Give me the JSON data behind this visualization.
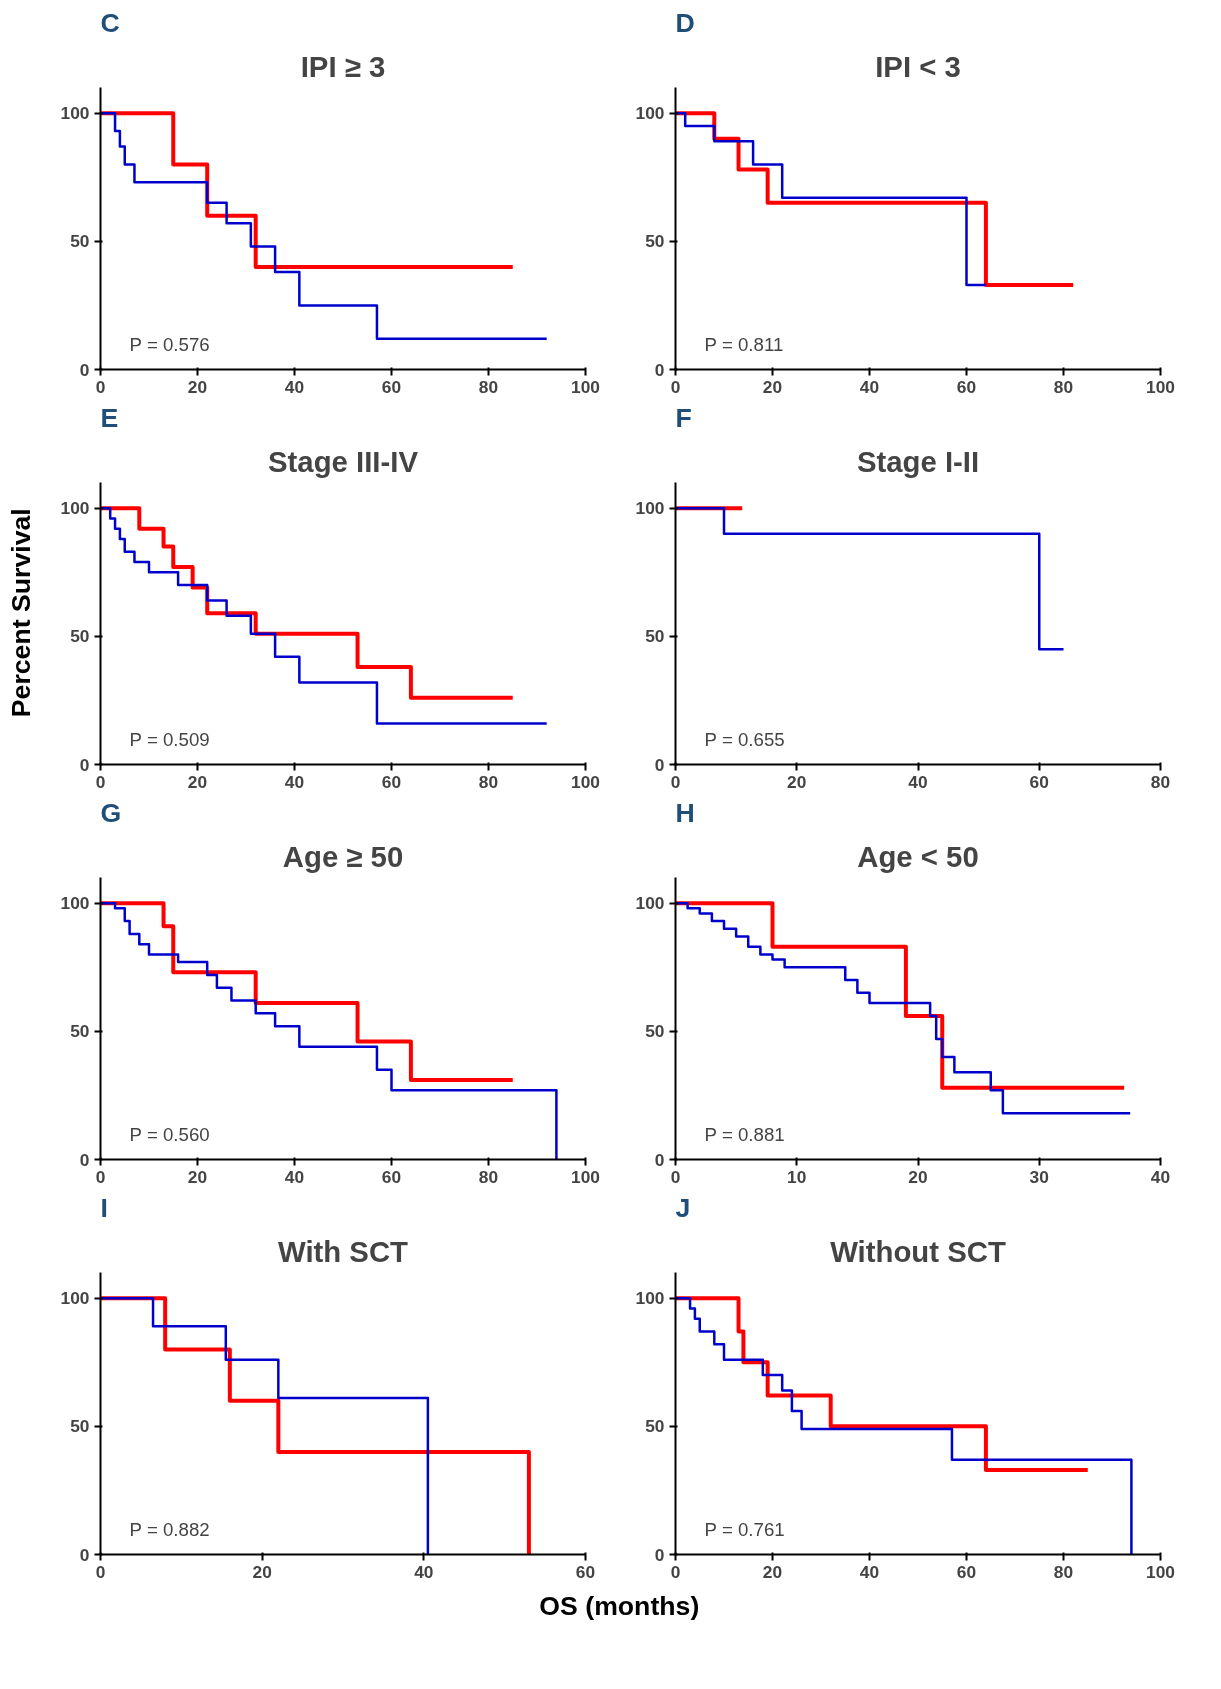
{
  "chart_data": [
    {
      "type": "step",
      "title": "IPI ≥ 3",
      "annotations": [
        "C",
        "P = 0.576"
      ],
      "xlim": [
        0,
        100
      ],
      "xticks": [
        0,
        20,
        40,
        60,
        80,
        100
      ],
      "ylim": [
        0,
        110
      ],
      "yticks": [
        0,
        50,
        100
      ],
      "grid": false,
      "series": [
        {
          "color": "#ff0000",
          "x": [
            0,
            15,
            22,
            32,
            85
          ],
          "values": [
            100,
            80,
            60,
            40,
            40
          ]
        },
        {
          "color": "#0000cc",
          "x": [
            0,
            3,
            4,
            5,
            7,
            22,
            26,
            31,
            36,
            41,
            57,
            92
          ],
          "values": [
            100,
            93,
            87,
            80,
            73,
            65,
            57,
            48,
            38,
            25,
            12,
            12
          ]
        }
      ]
    },
    {
      "type": "step",
      "title": "IPI < 3",
      "annotations": [
        "D",
        "P = 0.811"
      ],
      "xlim": [
        0,
        100
      ],
      "xticks": [
        0,
        20,
        40,
        60,
        80,
        100
      ],
      "ylim": [
        0,
        110
      ],
      "yticks": [
        0,
        50,
        100
      ],
      "grid": false,
      "series": [
        {
          "color": "#ff0000",
          "x": [
            0,
            8,
            13,
            19,
            64,
            82
          ],
          "values": [
            100,
            90,
            78,
            65,
            33,
            33
          ]
        },
        {
          "color": "#0000cc",
          "x": [
            0,
            2,
            8,
            16,
            22,
            60,
            64
          ],
          "values": [
            100,
            95,
            89,
            80,
            67,
            33,
            33
          ]
        }
      ]
    },
    {
      "type": "step",
      "title": "Stage III-IV",
      "ylabel": "Percent Survival",
      "annotations": [
        "E",
        "P = 0.509"
      ],
      "xlim": [
        0,
        100
      ],
      "xticks": [
        0,
        20,
        40,
        60,
        80,
        100
      ],
      "ylim": [
        0,
        110
      ],
      "yticks": [
        0,
        50,
        100
      ],
      "grid": false,
      "series": [
        {
          "color": "#ff0000",
          "x": [
            0,
            8,
            13,
            15,
            19,
            22,
            32,
            53,
            64,
            85
          ],
          "values": [
            100,
            92,
            85,
            77,
            69,
            59,
            51,
            38,
            26,
            26
          ]
        },
        {
          "color": "#0000cc",
          "x": [
            0,
            2,
            3,
            4,
            5,
            7,
            10,
            16,
            22,
            26,
            31,
            36,
            41,
            57,
            92
          ],
          "values": [
            100,
            96,
            92,
            88,
            83,
            79,
            75,
            70,
            64,
            58,
            51,
            42,
            32,
            16,
            16
          ]
        }
      ]
    },
    {
      "type": "step",
      "title": "Stage I-II",
      "annotations": [
        "F",
        "P = 0.655"
      ],
      "xlim": [
        0,
        80
      ],
      "xticks": [
        0,
        20,
        40,
        60,
        80
      ],
      "ylim": [
        0,
        110
      ],
      "yticks": [
        0,
        50,
        100
      ],
      "grid": false,
      "series": [
        {
          "color": "#ff0000",
          "x": [
            0,
            11
          ],
          "values": [
            100,
            100
          ]
        },
        {
          "color": "#0000cc",
          "x": [
            0,
            8,
            60,
            64
          ],
          "values": [
            100,
            90,
            45,
            45
          ]
        }
      ]
    },
    {
      "type": "step",
      "title": "Age ≥ 50",
      "annotations": [
        "G",
        "P = 0.560"
      ],
      "xlim": [
        0,
        100
      ],
      "xticks": [
        0,
        20,
        40,
        60,
        80,
        100
      ],
      "ylim": [
        0,
        110
      ],
      "yticks": [
        0,
        50,
        100
      ],
      "grid": false,
      "series": [
        {
          "color": "#ff0000",
          "x": [
            0,
            13,
            15,
            32,
            53,
            64,
            85
          ],
          "values": [
            100,
            91,
            73,
            61,
            46,
            31,
            31
          ]
        },
        {
          "color": "#0000cc",
          "x": [
            0,
            3,
            5,
            6,
            8,
            10,
            16,
            22,
            24,
            27,
            32,
            36,
            41,
            57,
            60,
            94,
            94
          ],
          "values": [
            100,
            98,
            93,
            88,
            84,
            80,
            77,
            72,
            67,
            62,
            57,
            52,
            44,
            35,
            27,
            27,
            0
          ]
        }
      ]
    },
    {
      "type": "step",
      "title": "Age < 50",
      "annotations": [
        "H",
        "P = 0.881"
      ],
      "xlim": [
        0,
        40
      ],
      "xticks": [
        0,
        10,
        20,
        30,
        40
      ],
      "ylim": [
        0,
        110
      ],
      "yticks": [
        0,
        50,
        100
      ],
      "grid": false,
      "series": [
        {
          "color": "#ff0000",
          "x": [
            0,
            8,
            19,
            22,
            37
          ],
          "values": [
            100,
            83,
            56,
            28,
            28
          ]
        },
        {
          "color": "#0000cc",
          "x": [
            0,
            1,
            2,
            3,
            4,
            5,
            6,
            7,
            8,
            9,
            14,
            15,
            16,
            21,
            21.5,
            22,
            23,
            26,
            27,
            37.5
          ],
          "values": [
            100,
            98,
            96,
            93,
            90,
            87,
            83,
            80,
            78,
            75,
            70,
            65,
            61,
            56,
            47,
            40,
            34,
            27,
            18,
            18
          ]
        }
      ]
    },
    {
      "type": "step",
      "title": "With SCT",
      "annotations": [
        "I",
        "P = 0.882"
      ],
      "xlim": [
        0,
        60
      ],
      "xticks": [
        0,
        20,
        40,
        60
      ],
      "ylim": [
        0,
        110
      ],
      "yticks": [
        0,
        50,
        100
      ],
      "grid": false,
      "series": [
        {
          "color": "#ff0000",
          "x": [
            0,
            8,
            16,
            22,
            53,
            53
          ],
          "values": [
            100,
            80,
            60,
            40,
            40,
            0
          ]
        },
        {
          "color": "#0000cc",
          "x": [
            0,
            6.5,
            15.5,
            22,
            40.5,
            40.5
          ],
          "values": [
            100,
            89,
            76,
            61,
            61,
            0
          ]
        }
      ]
    },
    {
      "type": "step",
      "title": "Without SCT",
      "xlabel": "OS (months)",
      "annotations": [
        "J",
        "P = 0.761"
      ],
      "xlim": [
        0,
        100
      ],
      "xticks": [
        0,
        20,
        40,
        60,
        80,
        100
      ],
      "ylim": [
        0,
        110
      ],
      "yticks": [
        0,
        50,
        100
      ],
      "grid": false,
      "series": [
        {
          "color": "#ff0000",
          "x": [
            0,
            13,
            14,
            19,
            32,
            64,
            85
          ],
          "values": [
            100,
            87,
            75,
            62,
            50,
            33,
            33
          ]
        },
        {
          "color": "#0000cc",
          "x": [
            0,
            3,
            4,
            5,
            8,
            10,
            18,
            22,
            24,
            26,
            57,
            94,
            94
          ],
          "values": [
            100,
            96,
            92,
            87,
            82,
            76,
            70,
            64,
            56,
            49,
            37,
            37,
            0
          ]
        }
      ]
    }
  ]
}
